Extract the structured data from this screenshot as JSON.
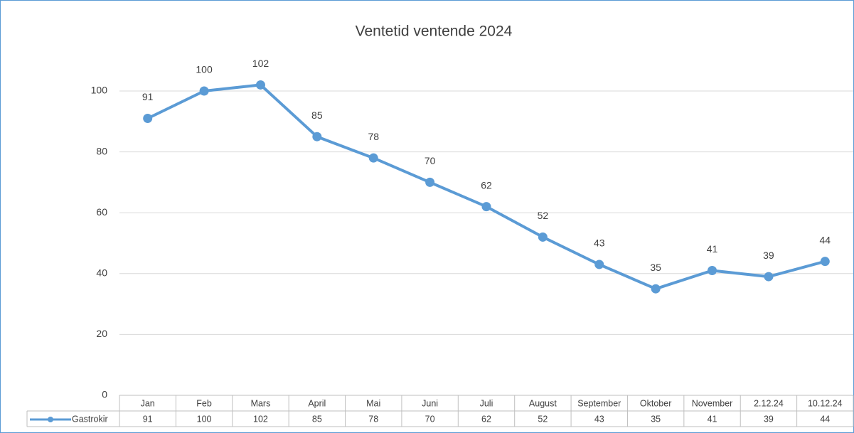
{
  "chart_data": {
    "type": "line",
    "title": "Ventetid ventende 2024",
    "categories": [
      "Jan",
      "Feb",
      "Mars",
      "April",
      "Mai",
      "Juni",
      "Juli",
      "August",
      "September",
      "Oktober",
      "November",
      "2.12.24",
      "10.12.24"
    ],
    "series": [
      {
        "name": "Gastrokir",
        "color": "#5b9bd5",
        "values": [
          91,
          100,
          102,
          85,
          78,
          70,
          62,
          52,
          43,
          35,
          41,
          39,
          44
        ]
      }
    ],
    "ylim": [
      0,
      120
    ],
    "yticks": [
      0,
      20,
      40,
      60,
      80,
      100
    ],
    "grid": true,
    "data_table": true
  }
}
